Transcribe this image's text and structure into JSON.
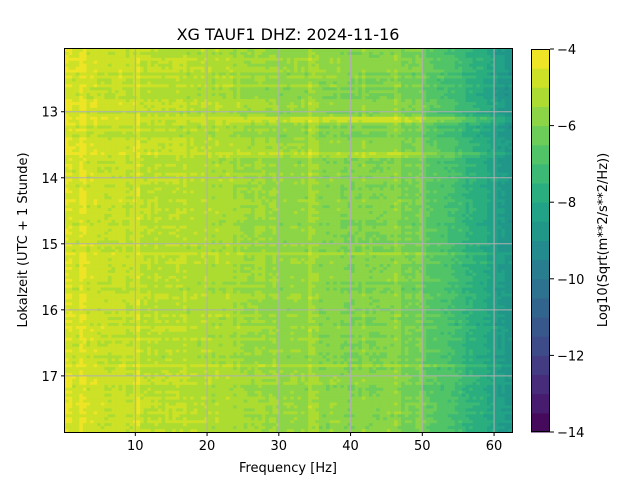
{
  "chart_data": {
    "type": "heatmap",
    "title": "XG TAUF1  DHZ: 2024-11-16",
    "xlabel": "Frequency [Hz]",
    "ylabel": "Lokalzeit (UTC + 1 Stunde)",
    "xlim": [
      0.2,
      62.5
    ],
    "ylim": [
      17.85,
      12.05
    ],
    "y_inverted": true,
    "xticks": [
      10,
      20,
      30,
      40,
      50,
      60
    ],
    "yticks": [
      13,
      14,
      15,
      16,
      17
    ],
    "grid": true,
    "colormap": "viridis",
    "colorbar": {
      "label": "Log10(Sqrt(m**2/s**2/Hz))",
      "range": [
        -14,
        -4
      ],
      "ticks": [
        -14,
        -12,
        -10,
        -8,
        -6,
        -4
      ],
      "levels": 20
    },
    "spectrum_profile": {
      "frequency_hz": [
        0,
        5,
        10,
        15,
        20,
        25,
        30,
        35,
        40,
        45,
        50,
        52,
        55,
        58,
        60,
        62.5
      ],
      "log10_amplitude": [
        -4.6,
        -4.8,
        -5.0,
        -5.1,
        -5.2,
        -5.4,
        -5.6,
        -5.7,
        -5.8,
        -5.9,
        -6.3,
        -6.6,
        -7.2,
        -7.8,
        -8.3,
        -8.9
      ]
    },
    "bright_bands": [
      {
        "time": 13.13,
        "amplitude_offset": 1.2
      },
      {
        "time": 13.66,
        "amplitude_offset": 0.8
      },
      {
        "time": 15.15,
        "amplitude_offset": 0.4
      },
      {
        "time": 15.55,
        "amplitude_offset": 0.3
      },
      {
        "time": 16.85,
        "amplitude_offset": 0.35
      }
    ],
    "spectral_lines_hz": [
      2.5,
      10,
      34.5,
      46.5,
      49.5
    ]
  }
}
